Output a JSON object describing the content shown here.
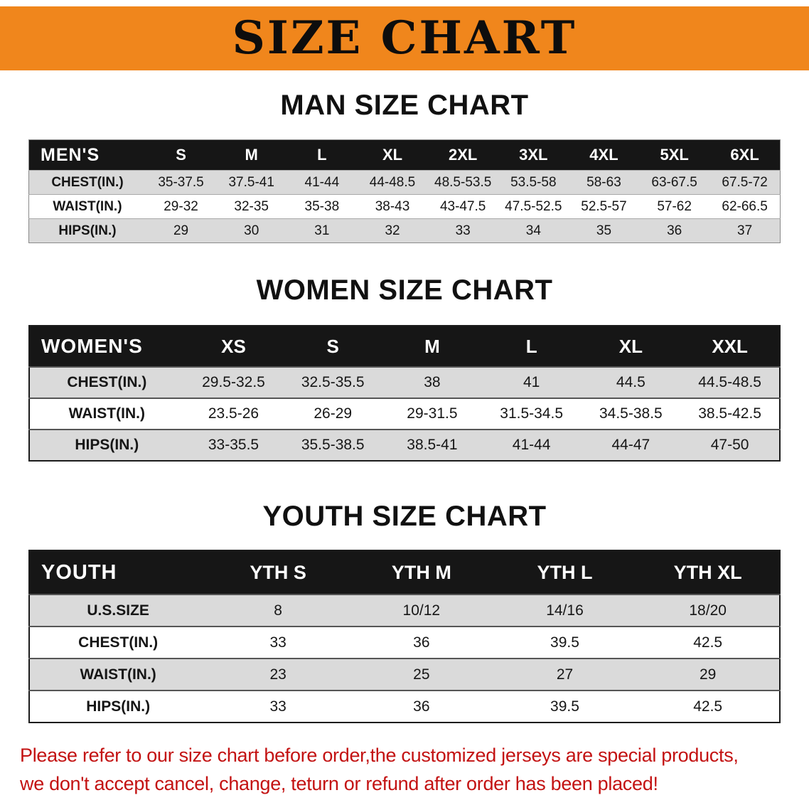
{
  "colors": {
    "banner": "#F0861C",
    "table_header": "#161616",
    "row_stripe": "#DADADA",
    "disclaimer": "#C31212"
  },
  "banner": {
    "title": "SIZE CHART"
  },
  "men_section": {
    "heading": "MAN SIZE CHART",
    "table": {
      "header": [
        "MEN'S",
        "S",
        "M",
        "L",
        "XL",
        "2XL",
        "3XL",
        "4XL",
        "5XL",
        "6XL"
      ],
      "rows": [
        [
          "CHEST(IN.)",
          "35-37.5",
          "37.5-41",
          "41-44",
          "44-48.5",
          "48.5-53.5",
          "53.5-58",
          "58-63",
          "63-67.5",
          "67.5-72"
        ],
        [
          "WAIST(IN.)",
          "29-32",
          "32-35",
          "35-38",
          "38-43",
          "43-47.5",
          "47.5-52.5",
          "52.5-57",
          "57-62",
          "62-66.5"
        ],
        [
          "HIPS(IN.)",
          "29",
          "30",
          "31",
          "32",
          "33",
          "34",
          "35",
          "36",
          "37"
        ]
      ]
    }
  },
  "women_section": {
    "heading": "WOMEN SIZE CHART",
    "table": {
      "header": [
        "WOMEN'S",
        "XS",
        "S",
        "M",
        "L",
        "XL",
        "XXL"
      ],
      "rows": [
        [
          "CHEST(IN.)",
          "29.5-32.5",
          "32.5-35.5",
          "38",
          "41",
          "44.5",
          "44.5-48.5"
        ],
        [
          "WAIST(IN.)",
          "23.5-26",
          "26-29",
          "29-31.5",
          "31.5-34.5",
          "34.5-38.5",
          "38.5-42.5"
        ],
        [
          "HIPS(IN.)",
          "33-35.5",
          "35.5-38.5",
          "38.5-41",
          "41-44",
          "44-47",
          "47-50"
        ]
      ]
    }
  },
  "youth_section": {
    "heading": "YOUTH SIZE CHART",
    "table": {
      "header": [
        "YOUTH",
        "YTH S",
        "YTH M",
        "YTH L",
        "YTH XL"
      ],
      "rows": [
        [
          "U.S.SIZE",
          "8",
          "10/12",
          "14/16",
          "18/20"
        ],
        [
          "CHEST(IN.)",
          "33",
          "36",
          "39.5",
          "42.5"
        ],
        [
          "WAIST(IN.)",
          "23",
          "25",
          "27",
          "29"
        ],
        [
          "HIPS(IN.)",
          "33",
          "36",
          "39.5",
          "42.5"
        ]
      ]
    }
  },
  "disclaimer": {
    "line1": "Please refer to our size chart before order,the customized jerseys are special products,",
    "line2": "we don't accept cancel, change, teturn or refund after order has been placed!"
  }
}
